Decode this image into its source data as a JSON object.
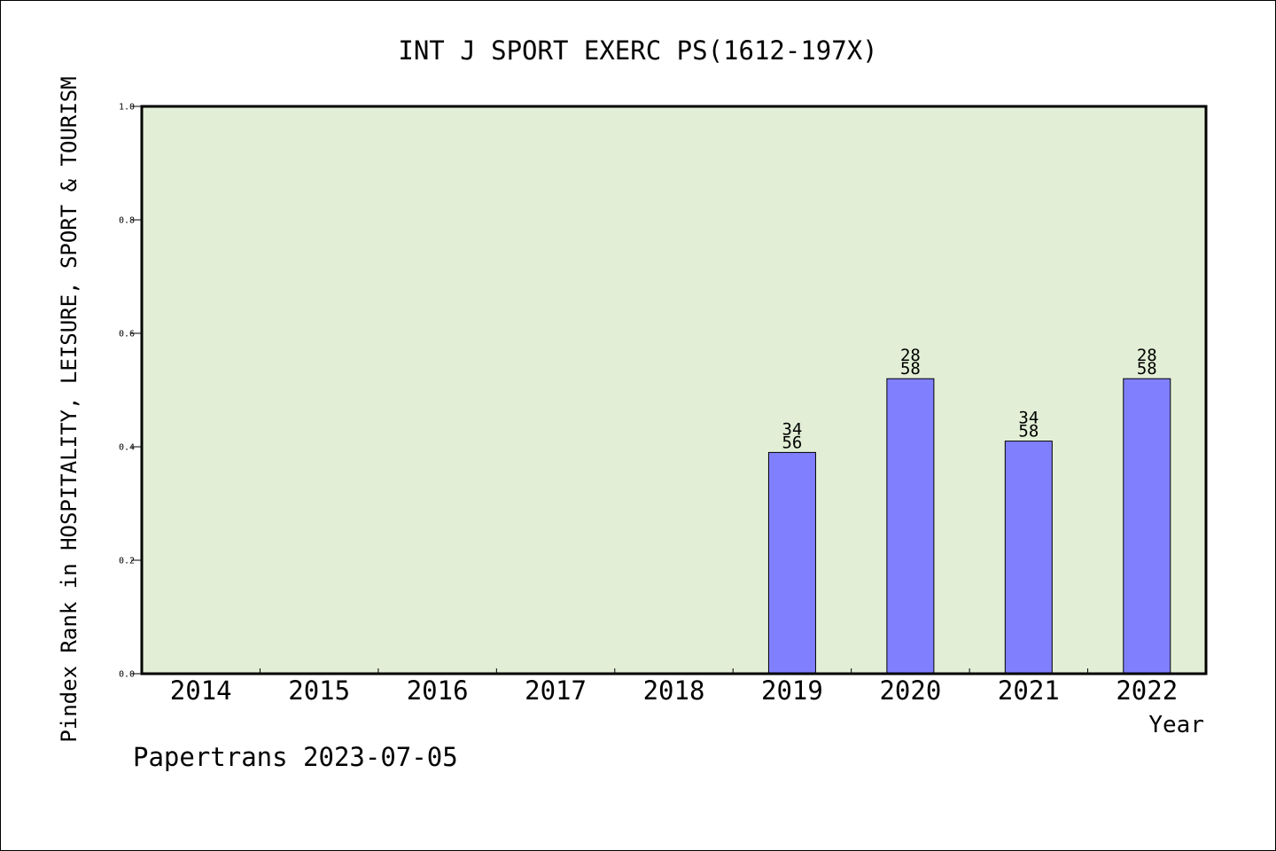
{
  "colors": {
    "plot_background": "#e2efd6",
    "bar_fill": "#8080ff",
    "bar_stroke": "#000000",
    "axis": "#000000"
  },
  "footer": "Papertrans 2023-07-05",
  "chart_data": {
    "type": "bar",
    "title": "INT J SPORT EXERC PS(1612-197X)",
    "xlabel": "Year",
    "ylabel": "Pindex Rank in HOSPITALITY, LEISURE, SPORT & TOURISM",
    "ylim": [
      0,
      1.0
    ],
    "yticks": [
      "0.0",
      "0.2",
      "0.4",
      "0.6",
      "0.8",
      "1.0"
    ],
    "grid": false,
    "categories": [
      "2014",
      "2015",
      "2016",
      "2017",
      "2018",
      "2019",
      "2020",
      "2021",
      "2022"
    ],
    "values": [
      null,
      null,
      null,
      null,
      null,
      0.39,
      0.52,
      0.41,
      0.52
    ],
    "labels": [
      null,
      null,
      null,
      null,
      null,
      {
        "rank": "34",
        "total": "56"
      },
      {
        "rank": "28",
        "total": "58"
      },
      {
        "rank": "34",
        "total": "58"
      },
      {
        "rank": "28",
        "total": "58"
      }
    ]
  }
}
